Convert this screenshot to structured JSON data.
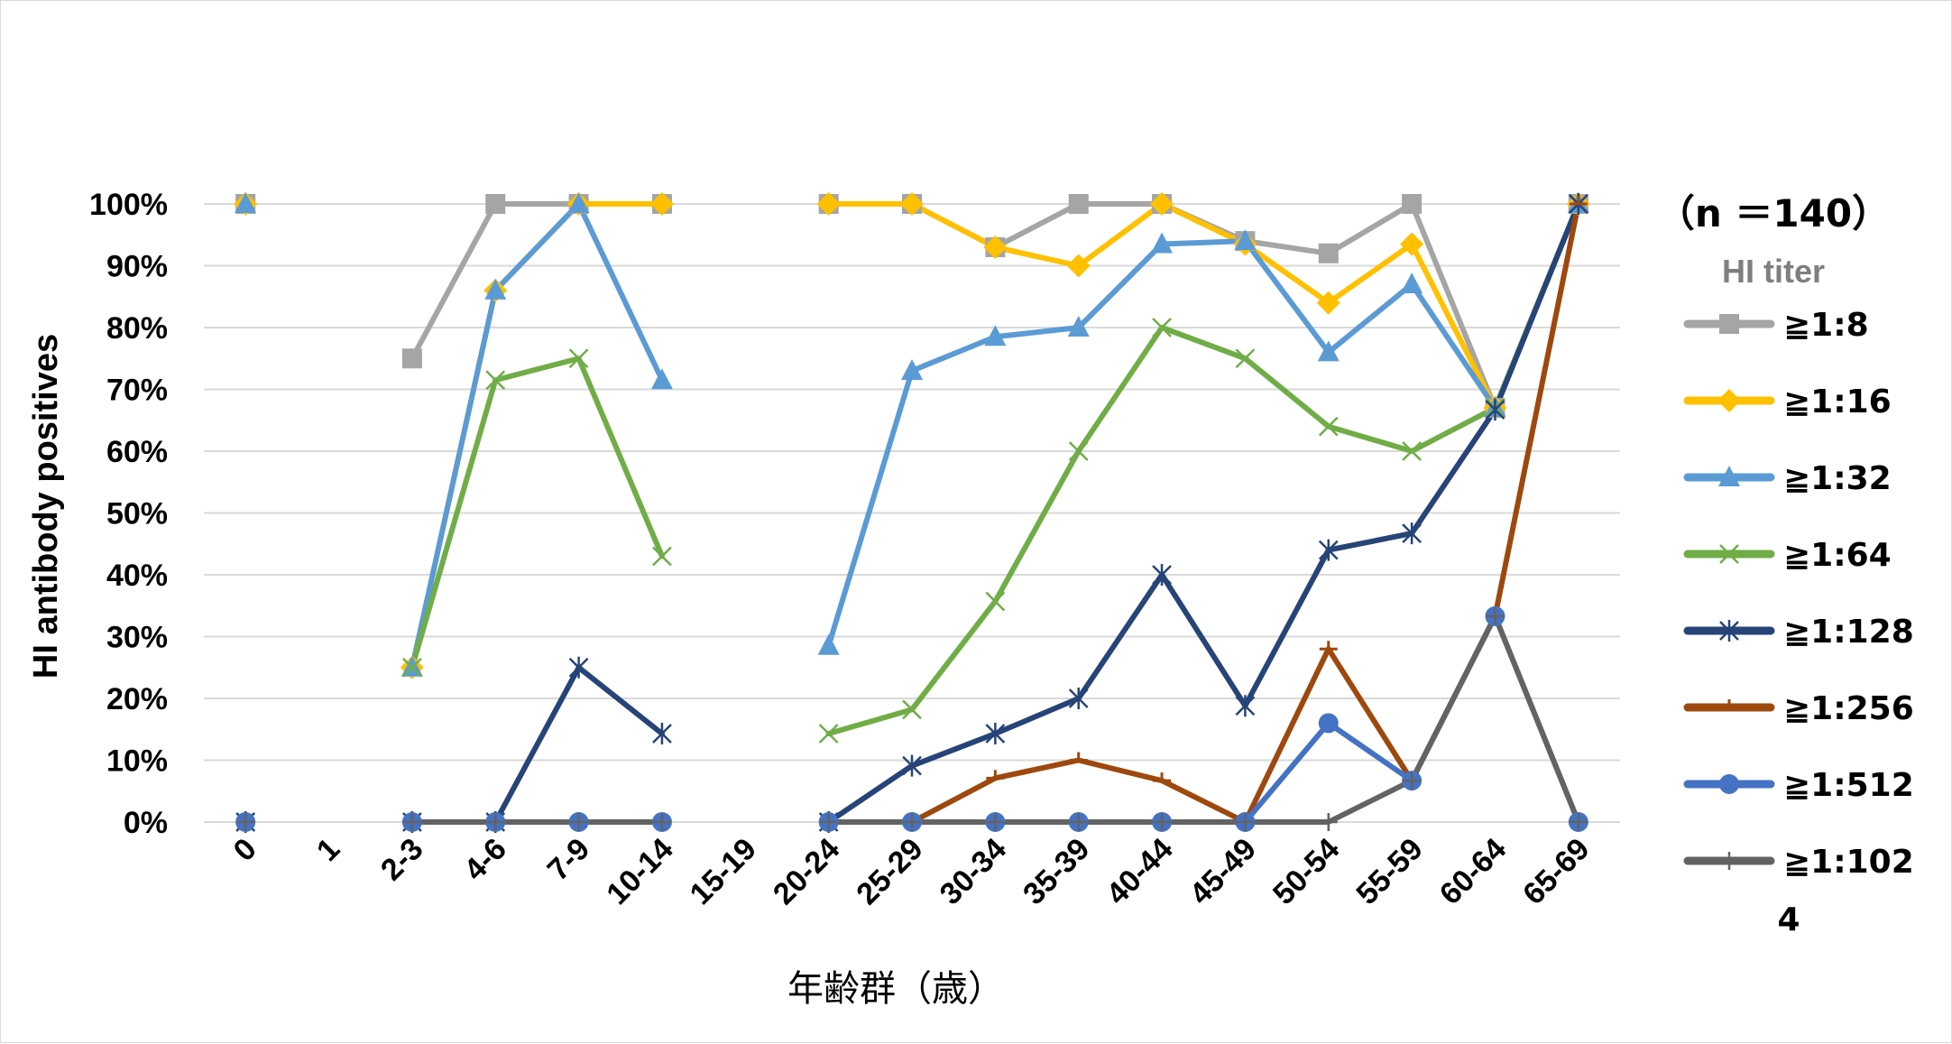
{
  "chart_data": {
    "type": "line",
    "title": "",
    "xlabel": "年齢群（歳）",
    "ylabel": "HI antibody  positives",
    "ylim": [
      0,
      100
    ],
    "yticks": [
      "0%",
      "10%",
      "20%",
      "30%",
      "40%",
      "50%",
      "60%",
      "70%",
      "80%",
      "90%",
      "100%"
    ],
    "categories": [
      "0",
      "1",
      "2-3",
      "4-6",
      "7-9",
      "10-14",
      "15-19",
      "20-24",
      "25-29",
      "30-34",
      "35-39",
      "40-44",
      "45-49",
      "50-54",
      "55-59",
      "60-64",
      "65-69"
    ],
    "grid": true,
    "legend_position": "right",
    "legend_note": "（n ＝140）",
    "legend_title": "HI titer",
    "series": [
      {
        "name": "≧1:8",
        "color": "#a5a5a5",
        "marker": "square",
        "values": [
          100,
          null,
          75,
          100,
          100,
          100,
          null,
          100,
          100,
          93,
          100,
          100,
          94,
          92,
          100,
          67,
          100
        ]
      },
      {
        "name": "≧1:16",
        "color": "#ffc000",
        "marker": "diamond",
        "values": [
          100,
          null,
          25,
          86,
          100,
          100,
          null,
          100,
          100,
          93,
          90,
          100,
          93.5,
          84,
          93.5,
          67,
          100
        ]
      },
      {
        "name": "≧1:32",
        "color": "#5b9bd5",
        "marker": "triangle",
        "values": [
          100,
          null,
          25,
          86,
          100,
          71.5,
          null,
          28.5,
          73,
          78.5,
          80,
          93.5,
          94,
          76,
          87,
          67,
          100
        ]
      },
      {
        "name": "≧1:64",
        "color": "#70ad47",
        "marker": "x",
        "values": [
          0,
          null,
          25,
          71.5,
          75,
          43,
          null,
          14.3,
          18.2,
          35.7,
          60,
          80,
          75,
          64,
          60,
          67,
          100
        ]
      },
      {
        "name": "≧1:128",
        "color": "#264478",
        "marker": "star",
        "values": [
          0,
          null,
          0,
          0,
          25,
          14.3,
          null,
          0,
          9.1,
          14.3,
          20,
          40,
          18.8,
          44,
          46.7,
          66.7,
          100
        ]
      },
      {
        "name": "≧1:256",
        "color": "#9e480e",
        "marker": "dash",
        "values": [
          0,
          null,
          0,
          0,
          0,
          0,
          null,
          0,
          0,
          7.1,
          10,
          6.7,
          0,
          28,
          6.7,
          33.3,
          100
        ]
      },
      {
        "name": "≧1:512",
        "color": "#4472c4",
        "marker": "circle",
        "values": [
          0,
          null,
          0,
          0,
          0,
          0,
          null,
          0,
          0,
          0,
          0,
          0,
          0,
          16,
          6.7,
          33.3,
          0
        ]
      },
      {
        "name": "≧1:102",
        "name_line2": "4",
        "color": "#636363",
        "marker": "plus",
        "values": [
          0,
          null,
          0,
          0,
          0,
          0,
          null,
          0,
          0,
          0,
          0,
          0,
          0,
          0,
          6.7,
          33.3,
          0
        ]
      }
    ]
  }
}
